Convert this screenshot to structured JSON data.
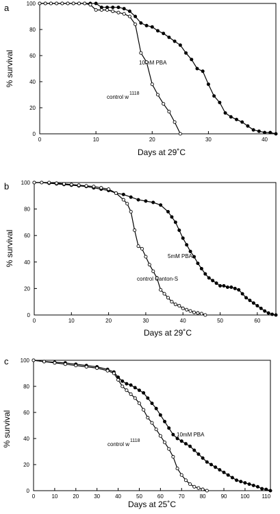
{
  "chart_data": [
    {
      "type": "line",
      "panel_label": "a",
      "xlabel": "Days at 29˚C",
      "ylabel": "% survival",
      "xlim": [
        0,
        42
      ],
      "ylim": [
        0,
        100
      ],
      "xticks": [
        0,
        10,
        20,
        30,
        40
      ],
      "yticks": [
        0,
        20,
        40,
        60,
        80,
        100
      ],
      "series": [
        {
          "name": "10mM PBA",
          "marker": "filled",
          "x": [
            0,
            1,
            2,
            3,
            4,
            5,
            6,
            7,
            8,
            9,
            10,
            11,
            12,
            13,
            14,
            15,
            16,
            17,
            18,
            19,
            20,
            21,
            22,
            23,
            24,
            25,
            26,
            27,
            28,
            29,
            30,
            31,
            32,
            33,
            34,
            35,
            36,
            37,
            38,
            39,
            40,
            41,
            42
          ],
          "y": [
            100,
            100,
            100,
            100,
            100,
            100,
            100,
            100,
            100,
            100,
            100,
            97,
            97,
            97,
            97,
            96,
            94,
            90,
            85,
            83,
            82,
            79,
            77,
            74,
            71,
            68,
            62,
            57,
            50,
            48,
            38,
            29,
            24,
            16,
            13,
            11,
            9,
            6,
            3,
            2,
            1,
            1,
            0
          ]
        },
        {
          "name": "control w",
          "name_sup": "1118",
          "marker": "open",
          "x": [
            0,
            1,
            2,
            3,
            4,
            5,
            6,
            7,
            8,
            9,
            10,
            11,
            12,
            13,
            14,
            15,
            16,
            17,
            18,
            19,
            20,
            21,
            22,
            23,
            24,
            25
          ],
          "y": [
            100,
            100,
            100,
            100,
            100,
            100,
            100,
            100,
            100,
            99,
            95,
            95,
            95,
            94,
            93,
            92,
            90,
            84,
            62,
            55,
            38,
            30,
            23,
            17,
            9,
            0
          ]
        }
      ]
    },
    {
      "type": "line",
      "panel_label": "b",
      "xlabel": "Days at 29˚C",
      "ylabel": "% survival",
      "xlim": [
        0,
        65
      ],
      "ylim": [
        0,
        100
      ],
      "xticks": [
        0,
        10,
        20,
        30,
        40,
        50,
        60
      ],
      "yticks": [
        0,
        20,
        40,
        60,
        80,
        100
      ],
      "series": [
        {
          "name": "5mM PBA",
          "marker": "filled",
          "x": [
            0,
            2,
            4,
            6,
            8,
            10,
            12,
            14,
            16,
            18,
            20,
            22,
            24,
            26,
            28,
            30,
            32,
            34,
            36,
            37,
            38,
            39,
            40,
            41,
            42,
            43,
            44,
            45,
            46,
            47,
            48,
            49,
            50,
            51,
            52,
            53,
            54,
            55,
            56,
            57,
            58,
            59,
            60,
            61,
            62,
            63,
            64,
            65
          ],
          "y": [
            100,
            100,
            99.5,
            99,
            98.5,
            98,
            97.5,
            97,
            96,
            95,
            94,
            92,
            91,
            89,
            87,
            86,
            85,
            83,
            78,
            74,
            70,
            64,
            58,
            53,
            48,
            44,
            39,
            35,
            31,
            28,
            26,
            24,
            22,
            22,
            21,
            21,
            20,
            19,
            16,
            13,
            11,
            9,
            7,
            5,
            3,
            1.5,
            0.5,
            0
          ]
        },
        {
          "name": "control Canton-S",
          "marker": "open",
          "x": [
            0,
            2,
            4,
            6,
            8,
            10,
            12,
            14,
            16,
            18,
            20,
            22,
            24,
            25,
            26,
            27,
            28,
            29,
            30,
            31,
            32,
            33,
            34,
            35,
            36,
            37,
            38,
            39,
            40,
            41,
            42,
            43,
            44,
            45,
            46
          ],
          "y": [
            100,
            100,
            100,
            99.5,
            99,
            98.5,
            98,
            97.5,
            97,
            96,
            95,
            92,
            87,
            84,
            78,
            64,
            52,
            50,
            44,
            38,
            33,
            28,
            19,
            16,
            13,
            10,
            8,
            7,
            5,
            4,
            3,
            2,
            1.5,
            1,
            0
          ]
        }
      ]
    },
    {
      "type": "line",
      "panel_label": "c",
      "xlabel": "Days at 25˚C",
      "ylabel": "% survival",
      "xlim": [
        0,
        112
      ],
      "ylim": [
        0,
        100
      ],
      "xticks": [
        0,
        10,
        20,
        30,
        40,
        50,
        60,
        70,
        80,
        90,
        100,
        110
      ],
      "yticks": [
        0,
        20,
        40,
        60,
        80,
        100
      ],
      "series": [
        {
          "name": "10mM PBA",
          "marker": "filled",
          "x": [
            0,
            5,
            10,
            15,
            20,
            25,
            30,
            35,
            38,
            40,
            42,
            44,
            46,
            48,
            50,
            52,
            54,
            56,
            58,
            60,
            62,
            64,
            66,
            68,
            70,
            72,
            74,
            76,
            78,
            80,
            82,
            84,
            86,
            88,
            90,
            92,
            94,
            96,
            98,
            100,
            102,
            104,
            106,
            108,
            110,
            112
          ],
          "y": [
            100,
            99,
            98.5,
            98,
            97,
            96,
            95,
            93,
            91,
            87,
            84,
            82,
            81,
            79,
            77,
            75,
            71,
            67,
            63,
            58,
            53,
            48,
            43,
            40,
            38,
            36,
            34,
            31,
            28,
            25,
            22,
            20,
            18,
            16,
            14,
            12,
            10,
            8,
            7,
            6,
            5,
            4,
            3,
            1.5,
            1,
            0
          ]
        },
        {
          "name": "control w",
          "name_sup": "1118",
          "marker": "open",
          "x": [
            0,
            5,
            10,
            15,
            20,
            25,
            30,
            35,
            38,
            40,
            42,
            44,
            46,
            48,
            50,
            52,
            54,
            56,
            58,
            60,
            62,
            64,
            66,
            68,
            70,
            72,
            74,
            76,
            78,
            80,
            82
          ],
          "y": [
            100,
            99,
            98,
            97,
            96,
            95,
            94,
            92,
            90,
            85,
            80,
            77,
            74,
            71,
            67,
            62,
            56,
            52,
            47,
            42,
            37,
            32,
            26,
            17,
            12,
            8,
            5,
            3,
            2,
            1,
            0
          ]
        }
      ]
    }
  ]
}
